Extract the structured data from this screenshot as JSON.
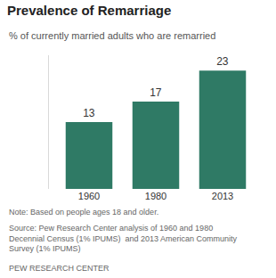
{
  "chart_data": {
    "type": "bar",
    "title": "Prevalence of Remarriage",
    "subtitle": "% of currently married adults who are remarried",
    "categories": [
      "1960",
      "1980",
      "2013"
    ],
    "values": [
      13,
      17,
      23
    ],
    "color": "#2f7a65",
    "ylim": [
      0,
      26
    ],
    "grid": false,
    "data_labels": true,
    "tick_labels": "x",
    "note": "Note: Based on people ages 18 and older.",
    "source": [
      "Source: Pew Research Center analysis of 1960 and 1980",
      "Decennial Census (1% IPUMS)  and 2013 American Community",
      "Survey (1% IPUMS)"
    ],
    "credit": "PEW RESEARCH CENTER"
  }
}
